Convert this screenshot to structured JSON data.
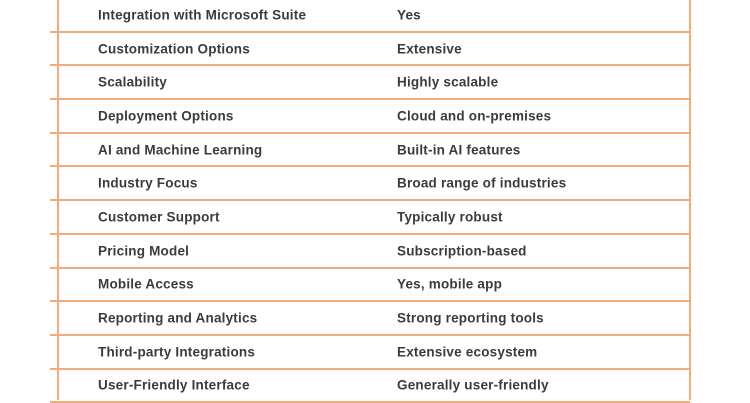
{
  "table": {
    "rows": [
      {
        "feature": "Integration with Microsoft Suite",
        "value": "Yes"
      },
      {
        "feature": "Customization Options",
        "value": "Extensive"
      },
      {
        "feature": "Scalability",
        "value": "Highly scalable"
      },
      {
        "feature": "Deployment Options",
        "value": "Cloud and on-premises"
      },
      {
        "feature": "AI and Machine Learning",
        "value": "Built-in AI features"
      },
      {
        "feature": "Industry Focus",
        "value": "Broad range of industries"
      },
      {
        "feature": "Customer Support",
        "value": "Typically robust"
      },
      {
        "feature": "Pricing Model",
        "value": "Subscription-based"
      },
      {
        "feature": "Mobile Access",
        "value": "Yes, mobile app"
      },
      {
        "feature": "Reporting and Analytics",
        "value": "Strong reporting tools"
      },
      {
        "feature": "Third-party Integrations",
        "value": "Extensive ecosystem"
      },
      {
        "feature": "User-Friendly Interface",
        "value": "Generally user-friendly"
      }
    ]
  },
  "colors": {
    "line": "#f2ab79",
    "text": "#3b3b3b",
    "background": "#ffffff"
  }
}
